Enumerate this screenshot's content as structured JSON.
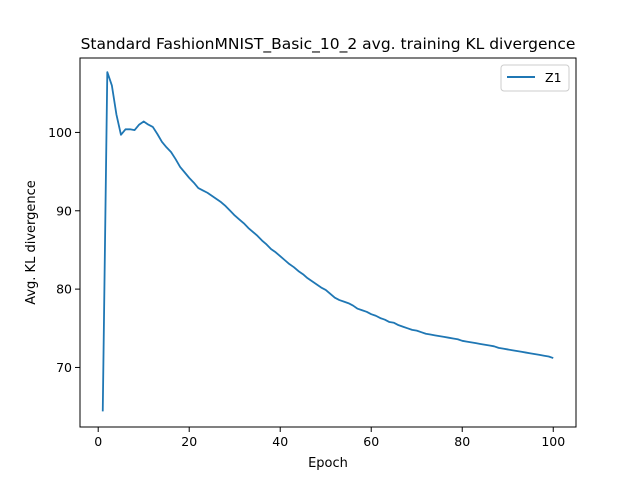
{
  "chart_data": {
    "type": "line",
    "title": "Standard FashionMNIST_Basic_10_2 avg. training KL divergence",
    "xlabel": "Epoch",
    "ylabel": "Avg. KL divergence",
    "xlim": [
      -4.0,
      105.0
    ],
    "ylim": [
      62.4,
      109.5
    ],
    "xticks": [
      0,
      20,
      40,
      60,
      80,
      100
    ],
    "yticks": [
      70,
      80,
      90,
      100
    ],
    "grid": false,
    "legend_position": "top-right",
    "series": [
      {
        "name": "Z1",
        "color": "#1f77b4",
        "x": [
          1,
          2,
          3,
          4,
          5,
          6,
          7,
          8,
          9,
          10,
          11,
          12,
          13,
          14,
          15,
          16,
          17,
          18,
          19,
          20,
          21,
          22,
          23,
          24,
          25,
          26,
          27,
          28,
          29,
          30,
          31,
          32,
          33,
          34,
          35,
          36,
          37,
          38,
          39,
          40,
          41,
          42,
          43,
          44,
          45,
          46,
          47,
          48,
          49,
          50,
          51,
          52,
          53,
          54,
          55,
          56,
          57,
          58,
          59,
          60,
          61,
          62,
          63,
          64,
          65,
          66,
          67,
          68,
          69,
          70,
          71,
          72,
          73,
          74,
          75,
          76,
          77,
          78,
          79,
          80,
          81,
          82,
          83,
          84,
          85,
          86,
          87,
          88,
          89,
          90,
          91,
          92,
          93,
          94,
          95,
          96,
          97,
          98,
          99,
          100
        ],
        "y": [
          64.4,
          107.7,
          106.0,
          102.3,
          99.7,
          100.4,
          100.4,
          100.3,
          101.0,
          101.4,
          101.0,
          100.7,
          99.8,
          98.8,
          98.1,
          97.5,
          96.6,
          95.6,
          94.9,
          94.2,
          93.6,
          92.9,
          92.6,
          92.3,
          91.9,
          91.5,
          91.1,
          90.6,
          90.0,
          89.4,
          88.9,
          88.4,
          87.8,
          87.3,
          86.8,
          86.2,
          85.7,
          85.1,
          84.7,
          84.2,
          83.7,
          83.2,
          82.8,
          82.3,
          81.9,
          81.4,
          81.0,
          80.6,
          80.2,
          79.9,
          79.4,
          78.9,
          78.6,
          78.4,
          78.2,
          77.9,
          77.5,
          77.3,
          77.1,
          76.8,
          76.6,
          76.3,
          76.1,
          75.8,
          75.7,
          75.4,
          75.2,
          75.0,
          74.8,
          74.7,
          74.5,
          74.3,
          74.2,
          74.1,
          74.0,
          73.9,
          73.8,
          73.7,
          73.6,
          73.4,
          73.3,
          73.2,
          73.1,
          73.0,
          72.9,
          72.8,
          72.7,
          72.5,
          72.4,
          72.3,
          72.2,
          72.1,
          72.0,
          71.9,
          71.8,
          71.7,
          71.6,
          71.5,
          71.4,
          71.2
        ]
      }
    ]
  }
}
